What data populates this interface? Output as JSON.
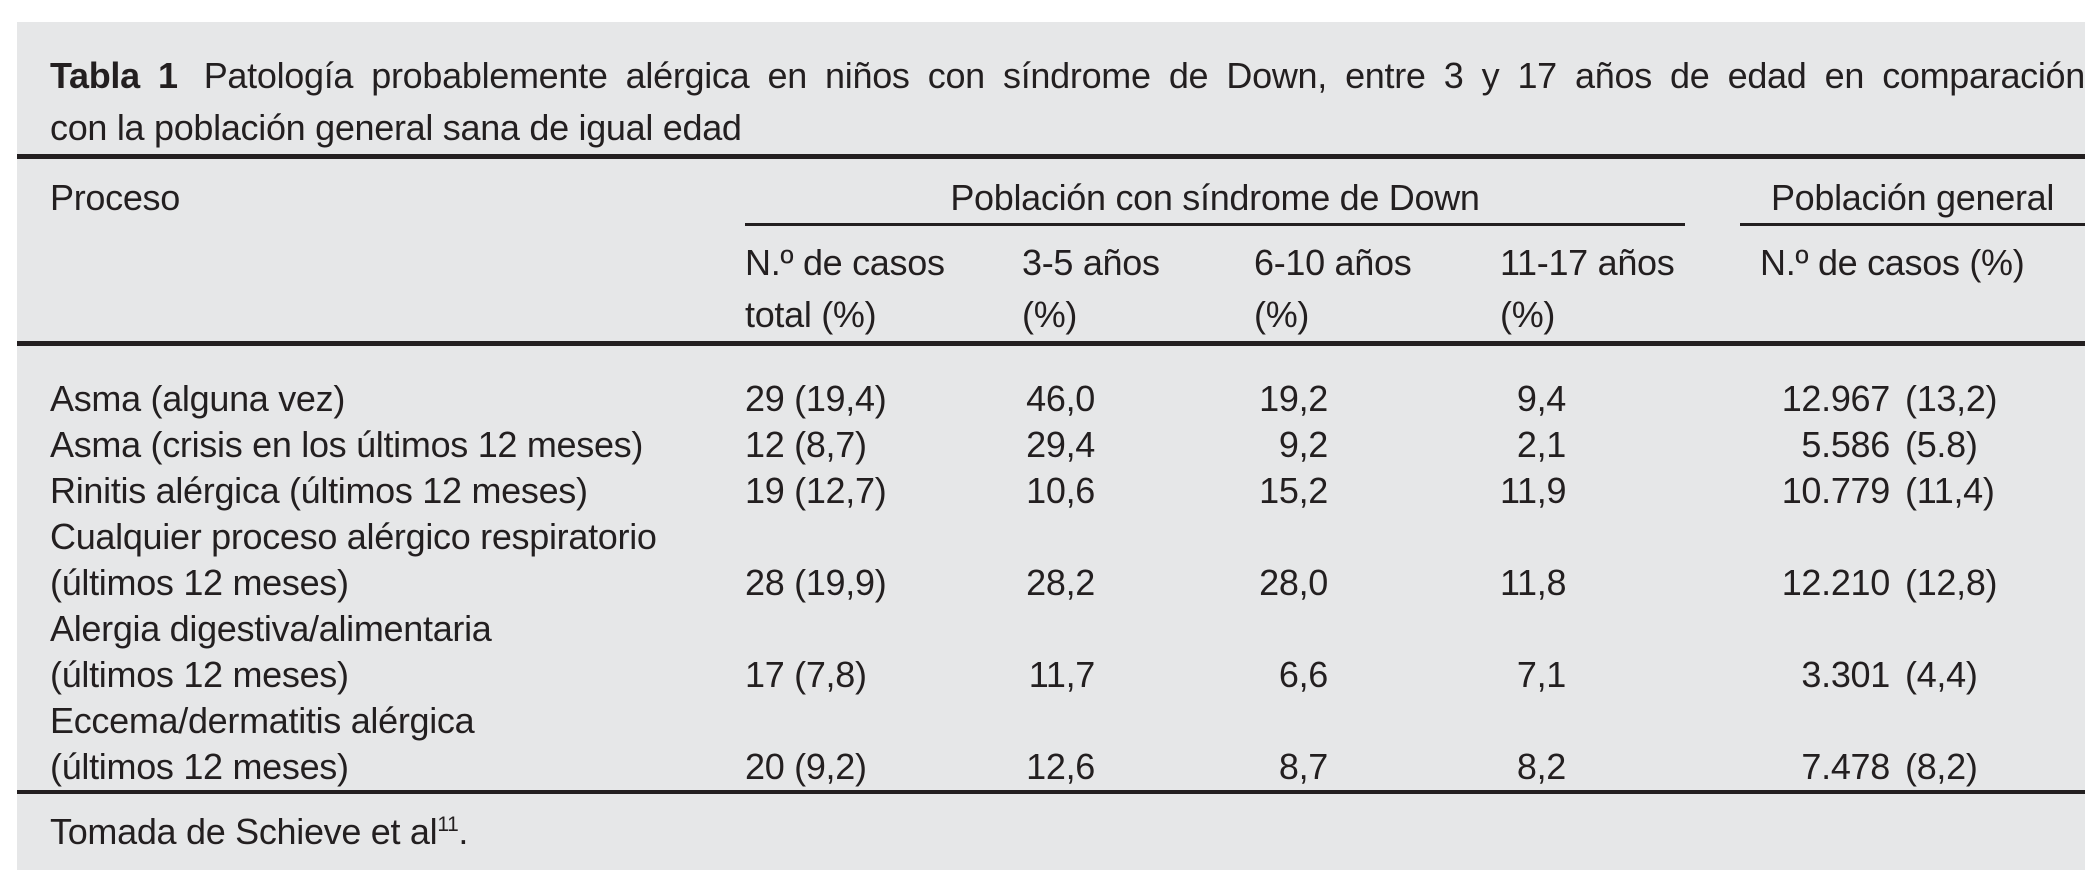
{
  "title": {
    "label": "Tabla 1",
    "line1": "Patología probablemente alérgica en niños con síndrome de Down, entre 3 y 17 años de edad en comparación",
    "line2": "con la población general sana de igual edad"
  },
  "header": {
    "process": "Proceso",
    "group_down": "Población con síndrome de Down",
    "group_general": "Población general",
    "sub": {
      "cases_total_l1": "N.º de casos",
      "cases_total_l2": "total (%)",
      "age_3_5_l1": "3-5 años",
      "age_3_5_l2": "(%)",
      "age_6_10_l1": "6-10 años",
      "age_6_10_l2": "(%)",
      "age_11_17_l1": "11-17 años",
      "age_11_17_l2": "(%)",
      "general_cases": "N.º de casos (%)"
    }
  },
  "rows": [
    {
      "label1": "Asma (alguna vez)",
      "label2": "",
      "cases_total": "29 (19,4)",
      "age_3_5": "46,0",
      "age_6_10": "19,2",
      "age_11_17": "9,4",
      "general_n": "12.967",
      "general_pct": "(13,2)"
    },
    {
      "label1": "Asma (crisis en los últimos 12 meses)",
      "label2": "",
      "cases_total": "12 (8,7)",
      "age_3_5": "29,4",
      "age_6_10": "9,2",
      "age_11_17": "2,1",
      "general_n": "5.586",
      "general_pct": "(5.8)"
    },
    {
      "label1": "Rinitis alérgica (últimos 12 meses)",
      "label2": "",
      "cases_total": "19 (12,7)",
      "age_3_5": "10,6",
      "age_6_10": "15,2",
      "age_11_17": "11,9",
      "general_n": "10.779",
      "general_pct": "(11,4)"
    },
    {
      "label1": "Cualquier proceso alérgico respiratorio",
      "label2": "(últimos 12 meses)",
      "cases_total": "28 (19,9)",
      "age_3_5": "28,2",
      "age_6_10": "28,0",
      "age_11_17": "11,8",
      "general_n": "12.210",
      "general_pct": "(12,8)"
    },
    {
      "label1": "Alergia digestiva/alimentaria",
      "label2": "(últimos 12 meses)",
      "cases_total": "17 (7,8)",
      "age_3_5": "11,7",
      "age_6_10": "6,6",
      "age_11_17": "7,1",
      "general_n": "3.301",
      "general_pct": "(4,4)"
    },
    {
      "label1": "Eccema/dermatitis alérgica",
      "label2": "(últimos 12 meses)",
      "cases_total": "20 (9,2)",
      "age_3_5": "12,6",
      "age_6_10": "8,7",
      "age_11_17": "8,2",
      "general_n": "7.478",
      "general_pct": "(8,2)"
    }
  ],
  "footer": {
    "prefix": "Tomada de Schieve et al",
    "ref": "11",
    "suffix": "."
  },
  "colors": {
    "panel_background": "#e6e7e8",
    "ink": "#231f20",
    "page_background": "#ffffff"
  }
}
